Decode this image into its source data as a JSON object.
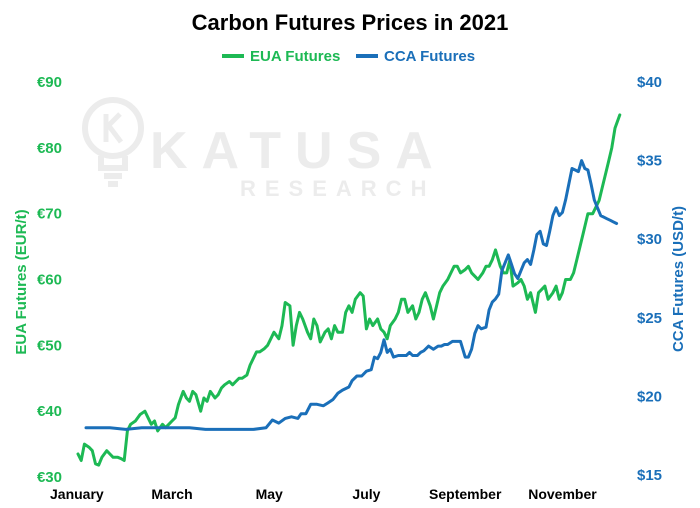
{
  "colors": {
    "eua": "#1db954",
    "cca": "#1a6fb9",
    "watermark": "#ececec"
  },
  "watermark": {
    "brand_line1": "KATUSA",
    "brand_line2": "RESEARCH"
  },
  "chart_data": {
    "type": "line",
    "title": "Carbon Futures Prices in 2021",
    "legend": {
      "placement": "top",
      "entries": [
        "EUA Futures",
        "CCA Futures"
      ]
    },
    "grid": false,
    "x_ticks": [
      {
        "label": "January",
        "day": 0
      },
      {
        "label": "March",
        "day": 59
      },
      {
        "label": "May",
        "day": 120
      },
      {
        "label": "July",
        "day": 181
      },
      {
        "label": "September",
        "day": 243
      },
      {
        "label": "November",
        "day": 304
      }
    ],
    "xlim": [
      0,
      342
    ],
    "y_left": {
      "label": "EUA Futures (EUR/t)",
      "ticks": [
        "€30",
        "€40",
        "€50",
        "€60",
        "€70",
        "€80",
        "€90"
      ],
      "tick_values": [
        30,
        40,
        50,
        60,
        70,
        80,
        90
      ],
      "lim": [
        30,
        90
      ]
    },
    "y_right": {
      "label": "CCA Futures (USD/t)",
      "ticks": [
        "$15",
        "$20",
        "$25",
        "$30",
        "$35",
        "$40"
      ],
      "tick_values": [
        15,
        20,
        25,
        30,
        35,
        40
      ],
      "lim": [
        15,
        40
      ]
    },
    "series": [
      {
        "name": "EUA Futures",
        "axis": "left",
        "points": [
          [
            0,
            33.5
          ],
          [
            2,
            32.5
          ],
          [
            4,
            35
          ],
          [
            7,
            34.5
          ],
          [
            9,
            34
          ],
          [
            11,
            32
          ],
          [
            13,
            31.8
          ],
          [
            15,
            33
          ],
          [
            18,
            34
          ],
          [
            20,
            33.5
          ],
          [
            22,
            33
          ],
          [
            25,
            33
          ],
          [
            27,
            32.8
          ],
          [
            29,
            32.5
          ],
          [
            31,
            37
          ],
          [
            33,
            38
          ],
          [
            36,
            38.5
          ],
          [
            39,
            39.5
          ],
          [
            42,
            40
          ],
          [
            44,
            39
          ],
          [
            46,
            38
          ],
          [
            48,
            38.5
          ],
          [
            50,
            37
          ],
          [
            53,
            38
          ],
          [
            55,
            37.5
          ],
          [
            57,
            38
          ],
          [
            59,
            38.5
          ],
          [
            61,
            39
          ],
          [
            63,
            41
          ],
          [
            66,
            43
          ],
          [
            68,
            42
          ],
          [
            70,
            41.5
          ],
          [
            72,
            43
          ],
          [
            74,
            42.5
          ],
          [
            77,
            40
          ],
          [
            79,
            42
          ],
          [
            81,
            41.5
          ],
          [
            83,
            43
          ],
          [
            86,
            42
          ],
          [
            88,
            42.5
          ],
          [
            90,
            43.5
          ],
          [
            92,
            44
          ],
          [
            95,
            44.5
          ],
          [
            97,
            44
          ],
          [
            99,
            44.5
          ],
          [
            101,
            45
          ],
          [
            103,
            45
          ],
          [
            106,
            45.5
          ],
          [
            108,
            47
          ],
          [
            110,
            48
          ],
          [
            112,
            49
          ],
          [
            114,
            49
          ],
          [
            117,
            49.5
          ],
          [
            119,
            50
          ],
          [
            121,
            51
          ],
          [
            123,
            52
          ],
          [
            126,
            51
          ],
          [
            128,
            53
          ],
          [
            130,
            56.5
          ],
          [
            133,
            56
          ],
          [
            135,
            50
          ],
          [
            137,
            53
          ],
          [
            139,
            55
          ],
          [
            141,
            54
          ],
          [
            144,
            52
          ],
          [
            146,
            51
          ],
          [
            148,
            54
          ],
          [
            150,
            53
          ],
          [
            152,
            50.5
          ],
          [
            155,
            52
          ],
          [
            157,
            52.5
          ],
          [
            159,
            51
          ],
          [
            161,
            53
          ],
          [
            163,
            52
          ],
          [
            166,
            52
          ],
          [
            168,
            55
          ],
          [
            170,
            56
          ],
          [
            172,
            55
          ],
          [
            174,
            57
          ],
          [
            177,
            58
          ],
          [
            179,
            57.5
          ],
          [
            181,
            52.5
          ],
          [
            183,
            54
          ],
          [
            185,
            53
          ],
          [
            188,
            54
          ],
          [
            190,
            52.5
          ],
          [
            192,
            52
          ],
          [
            194,
            51
          ],
          [
            196,
            53
          ],
          [
            199,
            54
          ],
          [
            201,
            55
          ],
          [
            203,
            57
          ],
          [
            205,
            57
          ],
          [
            207,
            55
          ],
          [
            210,
            56
          ],
          [
            212,
            54
          ],
          [
            214,
            55
          ],
          [
            216,
            57
          ],
          [
            218,
            58
          ],
          [
            221,
            56
          ],
          [
            223,
            54
          ],
          [
            225,
            56
          ],
          [
            227,
            58
          ],
          [
            229,
            59
          ],
          [
            232,
            60
          ],
          [
            234,
            61
          ],
          [
            236,
            62
          ],
          [
            238,
            62
          ],
          [
            240,
            61
          ],
          [
            243,
            61.5
          ],
          [
            245,
            62
          ],
          [
            247,
            61
          ],
          [
            249,
            60.5
          ],
          [
            251,
            60
          ],
          [
            254,
            61
          ],
          [
            256,
            62
          ],
          [
            258,
            62
          ],
          [
            260,
            63
          ],
          [
            262,
            64.5
          ],
          [
            265,
            62
          ],
          [
            267,
            61
          ],
          [
            269,
            61
          ],
          [
            271,
            63
          ],
          [
            273,
            59
          ],
          [
            276,
            59.5
          ],
          [
            278,
            60
          ],
          [
            280,
            59
          ],
          [
            282,
            57
          ],
          [
            284,
            58
          ],
          [
            287,
            55
          ],
          [
            289,
            58
          ],
          [
            291,
            58.5
          ],
          [
            293,
            59
          ],
          [
            295,
            57
          ],
          [
            298,
            58
          ],
          [
            300,
            59
          ],
          [
            302,
            57
          ],
          [
            304,
            58
          ],
          [
            306,
            60
          ],
          [
            309,
            60
          ],
          [
            311,
            61
          ],
          [
            313,
            63
          ],
          [
            315,
            65
          ],
          [
            317,
            67
          ],
          [
            319,
            69
          ],
          [
            320,
            70
          ],
          [
            323,
            70
          ],
          [
            325,
            71
          ],
          [
            327,
            72
          ],
          [
            329,
            74
          ],
          [
            331,
            76
          ],
          [
            333,
            78
          ],
          [
            335,
            80
          ],
          [
            337,
            83
          ],
          [
            340,
            85
          ]
        ]
      },
      {
        "name": "CCA Futures",
        "axis": "right",
        "points": [
          [
            5,
            18
          ],
          [
            10,
            18
          ],
          [
            20,
            18
          ],
          [
            30,
            17.9
          ],
          [
            40,
            18
          ],
          [
            50,
            18
          ],
          [
            60,
            18
          ],
          [
            70,
            18
          ],
          [
            80,
            17.9
          ],
          [
            90,
            17.9
          ],
          [
            100,
            17.9
          ],
          [
            110,
            17.9
          ],
          [
            118,
            18
          ],
          [
            122,
            18.5
          ],
          [
            126,
            18.3
          ],
          [
            130,
            18.6
          ],
          [
            134,
            18.7
          ],
          [
            138,
            18.6
          ],
          [
            140,
            18.9
          ],
          [
            143,
            18.9
          ],
          [
            146,
            19.5
          ],
          [
            150,
            19.5
          ],
          [
            154,
            19.4
          ],
          [
            157,
            19.6
          ],
          [
            160,
            19.8
          ],
          [
            163,
            20.2
          ],
          [
            166,
            20.4
          ],
          [
            170,
            20.6
          ],
          [
            172,
            21
          ],
          [
            175,
            21.3
          ],
          [
            178,
            21.3
          ],
          [
            181,
            21.6
          ],
          [
            184,
            21.7
          ],
          [
            186,
            22.5
          ],
          [
            188,
            22.4
          ],
          [
            190,
            22.8
          ],
          [
            192,
            23.6
          ],
          [
            194,
            22.8
          ],
          [
            196,
            23
          ],
          [
            198,
            22.5
          ],
          [
            201,
            22.6
          ],
          [
            203,
            22.6
          ],
          [
            206,
            22.6
          ],
          [
            208,
            22.8
          ],
          [
            210,
            22.6
          ],
          [
            213,
            22.6
          ],
          [
            215,
            22.8
          ],
          [
            217,
            22.9
          ],
          [
            220,
            23.2
          ],
          [
            223,
            23
          ],
          [
            226,
            23.2
          ],
          [
            228,
            23.2
          ],
          [
            230,
            23.3
          ],
          [
            232,
            23.3
          ],
          [
            235,
            23.5
          ],
          [
            237,
            23.5
          ],
          [
            240,
            23.5
          ],
          [
            243,
            22.5
          ],
          [
            245,
            22.5
          ],
          [
            247,
            23
          ],
          [
            249,
            24
          ],
          [
            251,
            24.5
          ],
          [
            253,
            24.3
          ],
          [
            256,
            24.4
          ],
          [
            258,
            25.5
          ],
          [
            260,
            26
          ],
          [
            262,
            26.2
          ],
          [
            264,
            26.5
          ],
          [
            266,
            28
          ],
          [
            268,
            28.5
          ],
          [
            270,
            29
          ],
          [
            272,
            28.4
          ],
          [
            274,
            27.8
          ],
          [
            276,
            27.5
          ],
          [
            278,
            28
          ],
          [
            280,
            28.5
          ],
          [
            282,
            28.7
          ],
          [
            284,
            28.4
          ],
          [
            286,
            29.3
          ],
          [
            288,
            30.3
          ],
          [
            290,
            30.5
          ],
          [
            292,
            29.7
          ],
          [
            294,
            29.6
          ],
          [
            296,
            30.5
          ],
          [
            298,
            31.5
          ],
          [
            300,
            32
          ],
          [
            302,
            31.5
          ],
          [
            304,
            31.7
          ],
          [
            306,
            32.5
          ],
          [
            308,
            33.5
          ],
          [
            310,
            34.5
          ],
          [
            312,
            34.4
          ],
          [
            314,
            34.3
          ],
          [
            316,
            35
          ],
          [
            318,
            34.5
          ],
          [
            320,
            34.4
          ],
          [
            322,
            33.5
          ],
          [
            324,
            32.5
          ],
          [
            326,
            32
          ],
          [
            328,
            31.5
          ],
          [
            330,
            31.4
          ],
          [
            332,
            31.3
          ],
          [
            334,
            31.2
          ],
          [
            336,
            31.1
          ],
          [
            338,
            31
          ]
        ]
      }
    ]
  }
}
